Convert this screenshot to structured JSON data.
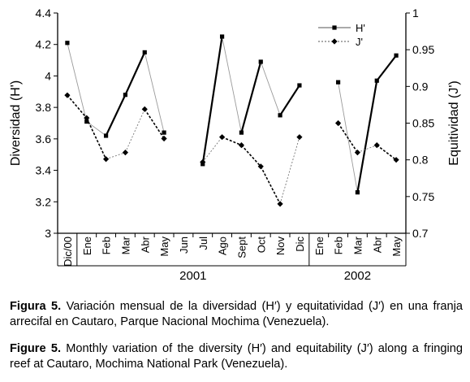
{
  "chart_data": {
    "type": "line",
    "categories": [
      "Dic/00",
      "Ene",
      "Feb",
      "Mar",
      "Abr",
      "May",
      "Jun",
      "Jul",
      "Ago",
      "Sept",
      "Oct",
      "Nov",
      "Dic",
      "Ene",
      "Feb",
      "Mar",
      "Abr",
      "May"
    ],
    "year_groups": [
      {
        "label": "2001",
        "from": 1,
        "to": 12
      },
      {
        "label": "2002",
        "from": 13,
        "to": 17
      }
    ],
    "ylabel": "Diversidad (H')",
    "ylabel_right": "Equitividad (J')",
    "ylim": [
      3,
      4.4
    ],
    "yticks": [
      "3",
      "3.2",
      "3.4",
      "3.6",
      "3.8",
      "4",
      "4.2",
      "4.4"
    ],
    "ylim_right": [
      0.7,
      1
    ],
    "yticks_right": [
      "0.7",
      "0.75",
      "0.8",
      "0.85",
      "0.9",
      "0.95",
      "1"
    ],
    "legend_position": "top-right",
    "series": [
      {
        "name": "H'",
        "axis": "left",
        "marker": "square",
        "color": "#000000",
        "values": [
          4.21,
          3.71,
          3.62,
          3.88,
          4.15,
          3.64,
          null,
          3.44,
          4.25,
          3.64,
          4.09,
          3.75,
          3.94,
          null,
          3.96,
          3.26,
          3.97,
          4.13
        ]
      },
      {
        "name": "J'",
        "axis": "right",
        "marker": "diamond",
        "color": "#000000",
        "values": [
          0.888,
          0.857,
          0.801,
          0.81,
          0.869,
          0.829,
          null,
          0.797,
          0.831,
          0.82,
          0.791,
          0.74,
          0.831,
          null,
          0.85,
          0.81,
          0.82,
          0.8
        ]
      }
    ]
  },
  "caption": {
    "es_label": "Figura 5.",
    "es_text": " Variación mensual de la diversidad (H′) y equitatividad (J′) en una franja arrecifal en Cautaro, Parque Nacional Mochima (Venezuela).",
    "en_label": "Figure 5.",
    "en_text": " Monthly variation of the diversity (H′) and equitability (J′) along a fringing reef at Cautaro, Mochima National Park (Venezuela)."
  }
}
